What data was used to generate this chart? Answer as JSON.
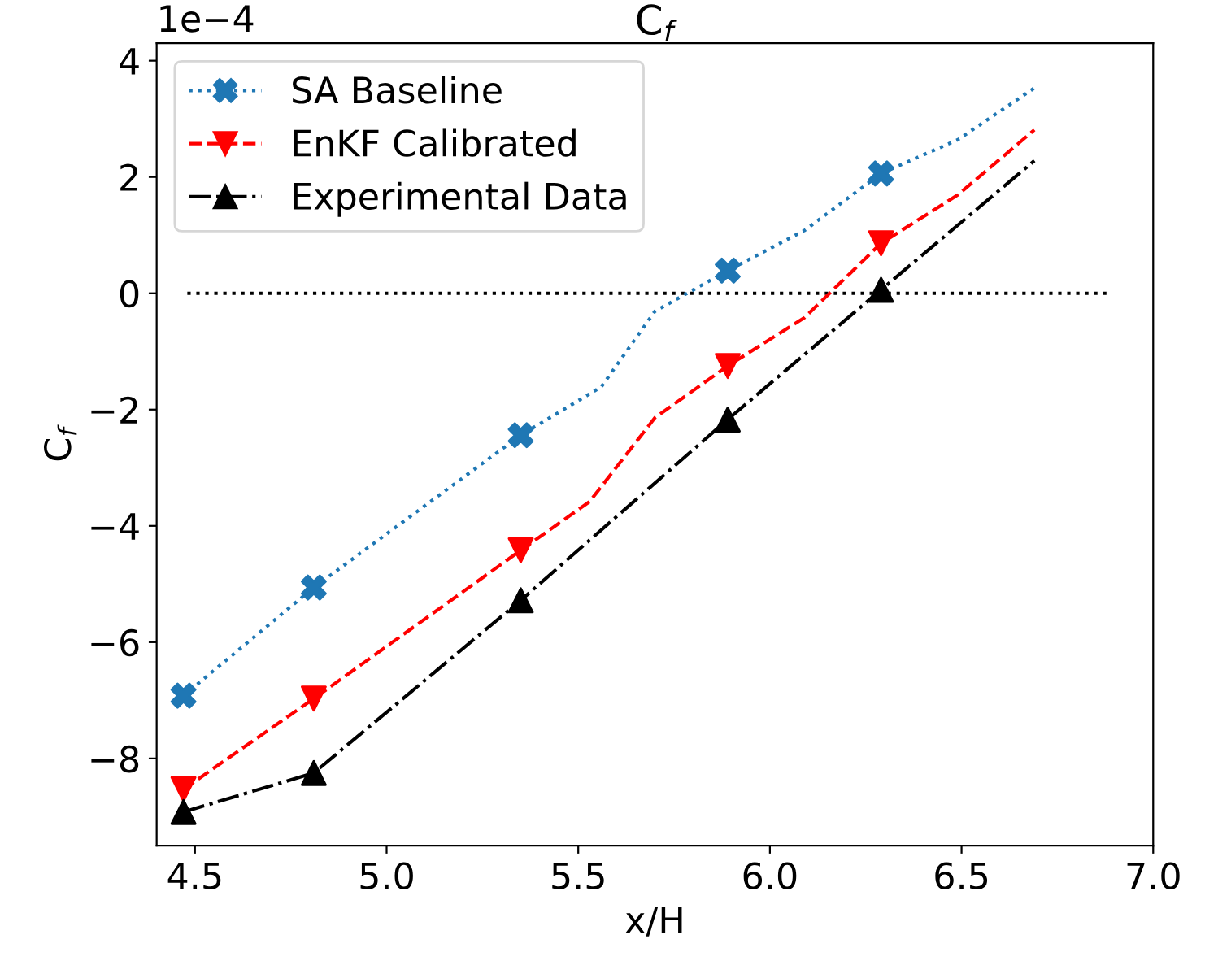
{
  "chart_data": {
    "type": "line",
    "title": "C$_{f}$",
    "xlabel": "x/H",
    "ylabel": "C$_{f}$",
    "annotations": [
      "1e−4"
    ],
    "xlim": [
      4.4,
      7.0
    ],
    "xticks": [
      4.5,
      {
        "value": 5.0,
        "label": "5.0"
      },
      5.5,
      {
        "value": 6.0,
        "label": "6.0"
      },
      6.5,
      {
        "value": 7.0,
        "label": "7.0"
      }
    ],
    "ylim": [
      -9.5,
      4.3
    ],
    "yticks": [
      {
        "value": -8,
        "label": "−8"
      },
      {
        "value": -6,
        "label": "−6"
      },
      {
        "value": -4,
        "label": "−4"
      },
      {
        "value": -2,
        "label": "−2"
      },
      0,
      2,
      4
    ],
    "legend": "top left",
    "grid": false,
    "series": [
      {
        "color": "#000000",
        "line_style": "dotted",
        "marker": "none",
        "x": [
          4.48,
          6.89
        ],
        "values": [
          0,
          0
        ]
      },
      {
        "name": "SA Baseline",
        "color": "#1f77b4",
        "line_style": "dotted",
        "marker": "none",
        "x": [
          4.47,
          4.81,
          5.35,
          5.56,
          5.7,
          5.89,
          6.09,
          6.29,
          6.49,
          6.69
        ],
        "values": [
          -6.92,
          -5.06,
          -2.44,
          -1.61,
          -0.31,
          0.39,
          1.08,
          2.06,
          2.64,
          3.53
        ]
      },
      {
        "type": "scatter",
        "color": "#1f77b4",
        "marker": "cross",
        "x": [
          4.47,
          4.81,
          5.35,
          5.89,
          6.29
        ],
        "values": [
          -6.92,
          -5.06,
          -2.44,
          0.39,
          2.06
        ]
      },
      {
        "name": "EnKF Calibrated",
        "color": "#ff0000",
        "line_style": "dashed",
        "marker": "none",
        "x": [
          4.47,
          4.81,
          5.35,
          5.53,
          5.7,
          5.89,
          6.09,
          6.29,
          6.49,
          6.69
        ],
        "values": [
          -8.53,
          -6.97,
          -4.42,
          -3.58,
          -2.14,
          -1.25,
          -0.42,
          0.86,
          1.69,
          2.81
        ]
      },
      {
        "type": "scatter",
        "color": "#ff0000",
        "marker": "triangle_down",
        "x": [
          4.47,
          4.81,
          5.35,
          5.89,
          6.29
        ],
        "values": [
          -8.53,
          -6.97,
          -4.42,
          -1.25,
          0.86
        ]
      },
      {
        "name": "Experimental Data",
        "color": "#000000",
        "line_style": "dashdot",
        "marker": "none",
        "x": [
          4.47,
          4.81,
          5.35,
          5.89,
          6.29,
          6.69
        ],
        "values": [
          -8.92,
          -8.25,
          -5.28,
          -2.17,
          0.06,
          2.28
        ]
      },
      {
        "type": "scatter",
        "color": "#000000",
        "marker": "triangle",
        "x": [
          4.47,
          4.81,
          5.35,
          5.89,
          6.29
        ],
        "values": [
          -8.92,
          -8.25,
          -5.28,
          -2.17,
          0.06
        ]
      }
    ]
  }
}
